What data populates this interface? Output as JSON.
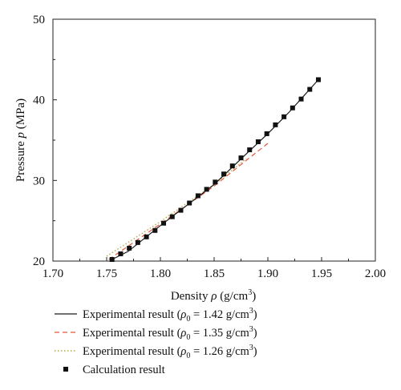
{
  "colors": {
    "exp_142": "#1a1a1a",
    "exp_135": "#e8553a",
    "exp_126": "#b8a84a",
    "calc": "#111111"
  },
  "chart_data": {
    "type": "line",
    "xlabel": {
      "prefix": "Density ",
      "symbol": "ρ",
      "unit_open": " (g/cm",
      "unit_exp": "3",
      "unit_close": ")"
    },
    "ylabel": {
      "prefix": "Pressure ",
      "symbol": "p",
      "unit": " (MPa)"
    },
    "xlim": [
      1.7,
      2.0
    ],
    "ylim": [
      20,
      50
    ],
    "xticks": [
      "1.70",
      "1.75",
      "1.80",
      "1.85",
      "1.90",
      "1.95",
      "2.00"
    ],
    "yticks": [
      "20",
      "30",
      "40",
      "50"
    ],
    "legend_position": "bottom",
    "series": [
      {
        "name": "Experimental result (ρ0 = 1.42 g/cm3)",
        "legend": {
          "prefix": "Experimental result (",
          "symbol": "ρ",
          "sub": "0",
          "eq": " = 1.42 g/cm",
          "exp": "3",
          "close": ")"
        },
        "style": "solid",
        "x": [
          1.755,
          1.77,
          1.8,
          1.85,
          1.88,
          1.9,
          1.92,
          1.947
        ],
        "y": [
          20.2,
          21.2,
          24.4,
          29.5,
          33.3,
          35.8,
          38.5,
          42.5
        ]
      },
      {
        "name": "Experimental result (ρ0 = 1.35 g/cm3)",
        "legend": {
          "prefix": "Experimental result (",
          "symbol": "ρ",
          "sub": "0",
          "eq": " = 1.35 g/cm",
          "exp": "3",
          "close": ")"
        },
        "style": "dashed",
        "x": [
          1.752,
          1.8,
          1.85,
          1.88,
          1.9
        ],
        "y": [
          20.2,
          24.6,
          29.3,
          32.5,
          34.6
        ]
      },
      {
        "name": "Experimental result (ρ0 = 1.26 g/cm3)",
        "legend": {
          "prefix": "Experimental result (",
          "symbol": "ρ",
          "sub": "0",
          "eq": " = 1.26 g/cm",
          "exp": "3",
          "close": ")"
        },
        "style": "dotted",
        "x": [
          1.75,
          1.8,
          1.85,
          1.88
        ],
        "y": [
          20.6,
          24.9,
          29.5,
          32.7
        ]
      },
      {
        "name": "Calculation result",
        "legend": {
          "text": "Calculation result"
        },
        "style": "markers",
        "x": [
          1.755,
          1.763,
          1.771,
          1.779,
          1.787,
          1.795,
          1.803,
          1.811,
          1.819,
          1.827,
          1.835,
          1.843,
          1.851,
          1.859,
          1.867,
          1.875,
          1.883,
          1.891,
          1.899,
          1.907,
          1.915,
          1.923,
          1.931,
          1.939,
          1.947
        ],
        "y": [
          20.2,
          20.9,
          21.6,
          22.3,
          23.0,
          23.8,
          24.7,
          25.5,
          26.3,
          27.2,
          28.1,
          28.9,
          29.8,
          30.8,
          31.8,
          32.8,
          33.8,
          34.8,
          35.8,
          36.9,
          37.9,
          39.0,
          40.1,
          41.3,
          42.5
        ]
      }
    ]
  }
}
